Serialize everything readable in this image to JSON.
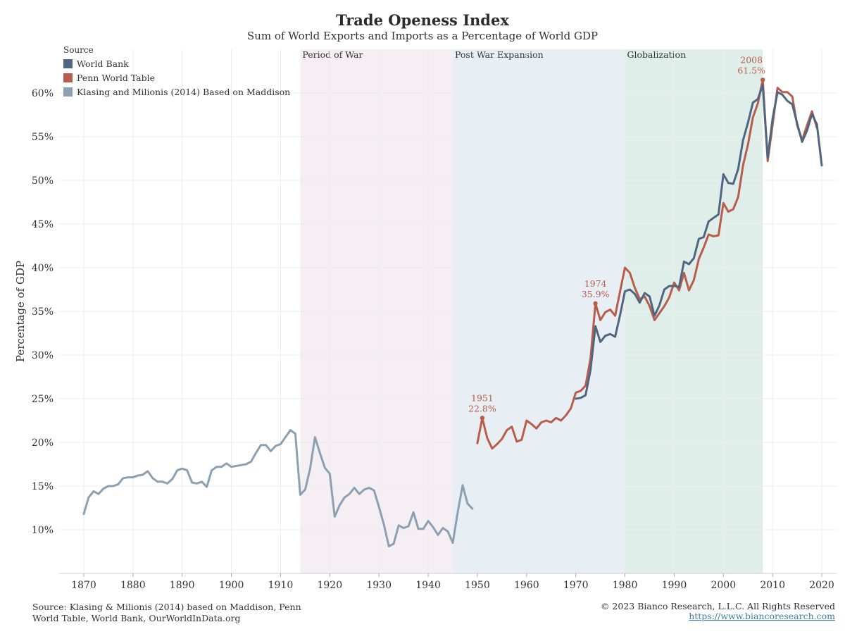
{
  "title": "Trade Openess Index",
  "subtitle": "Sum of World Exports and Imports as a Percentage of World GDP",
  "legend": {
    "title": "Source",
    "items": [
      {
        "label": "World Bank",
        "color": "#4e6680"
      },
      {
        "label": "Penn World Table",
        "color": "#b85c4b"
      },
      {
        "label": "Klasing and Milionis (2014) Based on Maddison",
        "color": "#8ba0b3"
      }
    ]
  },
  "footer": {
    "source": "Source: Klasing & Milionis (2014) based on Maddison, Penn World Table, World Bank, OurWorldInData.org",
    "copyright": "© 2023 Bianco Research, L.L.C. All Rights Reserved",
    "url": "https://www.biancoresearch.com"
  },
  "chart_data": {
    "type": "line",
    "title": "Trade Openess Index",
    "subtitle": "Sum of World Exports and Imports as a Percentage of World GDP",
    "xlabel": "",
    "ylabel": "Percentage of GDP",
    "xlim": [
      1865,
      2023
    ],
    "ylim": [
      5,
      65
    ],
    "xticks": [
      1870,
      1880,
      1890,
      1900,
      1910,
      1920,
      1930,
      1940,
      1950,
      1960,
      1970,
      1980,
      1990,
      2000,
      2010,
      2020
    ],
    "yticks": [
      10,
      15,
      20,
      25,
      30,
      35,
      40,
      45,
      50,
      55,
      60
    ],
    "ytick_suffix": "%",
    "grid": true,
    "legend_position": "top-left",
    "periods": [
      {
        "label": "Period of War",
        "start": 1914,
        "end": 1945,
        "color": "#f5eef3"
      },
      {
        "label": "Post War Expansion",
        "start": 1945,
        "end": 1980,
        "color": "#e8eff4"
      },
      {
        "label": "Globalization",
        "start": 1980,
        "end": 2008,
        "color": "#e0eeea"
      }
    ],
    "series": [
      {
        "name": "Klasing and Milionis (2014) Based on Maddison",
        "color": "#8ba0b3",
        "points": [
          [
            1870,
            11.8
          ],
          [
            1871,
            13.7
          ],
          [
            1872,
            14.4
          ],
          [
            1873,
            14.1
          ],
          [
            1874,
            14.7
          ],
          [
            1875,
            15.0
          ],
          [
            1876,
            15.0
          ],
          [
            1877,
            15.2
          ],
          [
            1878,
            15.9
          ],
          [
            1879,
            16.0
          ],
          [
            1880,
            16.0
          ],
          [
            1881,
            16.2
          ],
          [
            1882,
            16.3
          ],
          [
            1883,
            16.7
          ],
          [
            1884,
            15.9
          ],
          [
            1885,
            15.5
          ],
          [
            1886,
            15.5
          ],
          [
            1887,
            15.3
          ],
          [
            1888,
            15.8
          ],
          [
            1889,
            16.8
          ],
          [
            1890,
            17.0
          ],
          [
            1891,
            16.8
          ],
          [
            1892,
            15.4
          ],
          [
            1893,
            15.3
          ],
          [
            1894,
            15.5
          ],
          [
            1895,
            14.9
          ],
          [
            1896,
            16.8
          ],
          [
            1897,
            17.2
          ],
          [
            1898,
            17.2
          ],
          [
            1899,
            17.6
          ],
          [
            1900,
            17.2
          ],
          [
            1901,
            17.3
          ],
          [
            1902,
            17.4
          ],
          [
            1903,
            17.5
          ],
          [
            1904,
            17.8
          ],
          [
            1905,
            18.8
          ],
          [
            1906,
            19.7
          ],
          [
            1907,
            19.7
          ],
          [
            1908,
            19.0
          ],
          [
            1909,
            19.6
          ],
          [
            1910,
            19.8
          ],
          [
            1911,
            20.6
          ],
          [
            1912,
            21.4
          ],
          [
            1913,
            21.0
          ],
          [
            1914,
            14.0
          ],
          [
            1915,
            14.6
          ],
          [
            1916,
            17.0
          ],
          [
            1917,
            20.6
          ],
          [
            1918,
            18.8
          ],
          [
            1919,
            17.1
          ],
          [
            1920,
            16.4
          ],
          [
            1921,
            11.5
          ],
          [
            1922,
            12.8
          ],
          [
            1923,
            13.7
          ],
          [
            1924,
            14.1
          ],
          [
            1925,
            14.8
          ],
          [
            1926,
            14.1
          ],
          [
            1927,
            14.6
          ],
          [
            1928,
            14.8
          ],
          [
            1929,
            14.5
          ],
          [
            1930,
            12.6
          ],
          [
            1931,
            10.6
          ],
          [
            1932,
            8.1
          ],
          [
            1933,
            8.4
          ],
          [
            1934,
            10.5
          ],
          [
            1935,
            10.2
          ],
          [
            1936,
            10.4
          ],
          [
            1937,
            12.0
          ],
          [
            1938,
            10.1
          ],
          [
            1939,
            10.1
          ],
          [
            1940,
            11.0
          ],
          [
            1941,
            10.3
          ],
          [
            1942,
            9.4
          ],
          [
            1943,
            10.2
          ],
          [
            1944,
            9.8
          ],
          [
            1945,
            8.5
          ],
          [
            1946,
            12.0
          ],
          [
            1947,
            15.1
          ],
          [
            1948,
            13.0
          ],
          [
            1949,
            12.4
          ]
        ]
      },
      {
        "name": "Penn World Table",
        "color": "#b85c4b",
        "points": [
          [
            1950,
            19.9
          ],
          [
            1951,
            22.8
          ],
          [
            1952,
            20.5
          ],
          [
            1953,
            19.3
          ],
          [
            1954,
            19.8
          ],
          [
            1955,
            20.4
          ],
          [
            1956,
            21.4
          ],
          [
            1957,
            21.8
          ],
          [
            1958,
            20.1
          ],
          [
            1959,
            20.3
          ],
          [
            1960,
            22.5
          ],
          [
            1961,
            22.1
          ],
          [
            1962,
            21.6
          ],
          [
            1963,
            22.3
          ],
          [
            1964,
            22.5
          ],
          [
            1965,
            22.3
          ],
          [
            1966,
            22.8
          ],
          [
            1967,
            22.5
          ],
          [
            1968,
            23.1
          ],
          [
            1969,
            23.9
          ],
          [
            1970,
            25.7
          ],
          [
            1971,
            25.9
          ],
          [
            1972,
            26.5
          ],
          [
            1973,
            29.6
          ],
          [
            1974,
            35.9
          ],
          [
            1975,
            34.0
          ],
          [
            1976,
            34.9
          ],
          [
            1977,
            35.2
          ],
          [
            1978,
            34.5
          ],
          [
            1979,
            37.3
          ],
          [
            1980,
            40.0
          ],
          [
            1981,
            39.4
          ],
          [
            1982,
            37.7
          ],
          [
            1983,
            36.4
          ],
          [
            1984,
            36.7
          ],
          [
            1985,
            35.6
          ],
          [
            1986,
            34.0
          ],
          [
            1987,
            34.8
          ],
          [
            1988,
            35.6
          ],
          [
            1989,
            36.6
          ],
          [
            1990,
            38.3
          ],
          [
            1991,
            37.4
          ],
          [
            1992,
            39.4
          ],
          [
            1993,
            37.4
          ],
          [
            1994,
            38.6
          ],
          [
            1995,
            41.0
          ],
          [
            1996,
            42.3
          ],
          [
            1997,
            43.8
          ],
          [
            1998,
            43.6
          ],
          [
            1999,
            43.7
          ],
          [
            2000,
            47.4
          ],
          [
            2001,
            46.4
          ],
          [
            2002,
            46.7
          ],
          [
            2003,
            48.1
          ],
          [
            2004,
            51.7
          ],
          [
            2005,
            54.1
          ],
          [
            2006,
            57.2
          ],
          [
            2007,
            58.8
          ],
          [
            2008,
            61.5
          ],
          [
            2009,
            52.2
          ],
          [
            2010,
            56.4
          ],
          [
            2011,
            60.6
          ],
          [
            2012,
            60.1
          ],
          [
            2013,
            60.1
          ],
          [
            2014,
            59.6
          ],
          [
            2015,
            56.3
          ],
          [
            2016,
            54.6
          ],
          [
            2017,
            56.3
          ],
          [
            2018,
            57.9
          ],
          [
            2019,
            56.0
          ]
        ]
      },
      {
        "name": "World Bank",
        "color": "#4e6680",
        "points": [
          [
            1970,
            25.0
          ],
          [
            1971,
            25.1
          ],
          [
            1972,
            25.4
          ],
          [
            1973,
            28.3
          ],
          [
            1974,
            33.3
          ],
          [
            1975,
            31.5
          ],
          [
            1976,
            32.2
          ],
          [
            1977,
            32.4
          ],
          [
            1978,
            32.1
          ],
          [
            1979,
            34.6
          ],
          [
            1980,
            37.3
          ],
          [
            1981,
            37.5
          ],
          [
            1982,
            37.0
          ],
          [
            1983,
            36.0
          ],
          [
            1984,
            37.1
          ],
          [
            1985,
            36.7
          ],
          [
            1986,
            34.5
          ],
          [
            1987,
            35.7
          ],
          [
            1988,
            37.5
          ],
          [
            1989,
            37.9
          ],
          [
            1990,
            37.9
          ],
          [
            1991,
            37.8
          ],
          [
            1992,
            40.7
          ],
          [
            1993,
            40.4
          ],
          [
            1994,
            41.1
          ],
          [
            1995,
            43.3
          ],
          [
            1996,
            43.5
          ],
          [
            1997,
            45.3
          ],
          [
            1998,
            45.7
          ],
          [
            1999,
            46.1
          ],
          [
            2000,
            50.7
          ],
          [
            2001,
            49.7
          ],
          [
            2002,
            49.6
          ],
          [
            2003,
            51.3
          ],
          [
            2004,
            54.6
          ],
          [
            2005,
            56.6
          ],
          [
            2006,
            58.9
          ],
          [
            2007,
            59.3
          ],
          [
            2008,
            60.9
          ],
          [
            2009,
            52.6
          ],
          [
            2010,
            57.1
          ],
          [
            2011,
            60.1
          ],
          [
            2012,
            59.8
          ],
          [
            2013,
            59.1
          ],
          [
            2014,
            58.7
          ],
          [
            2015,
            56.5
          ],
          [
            2016,
            54.4
          ],
          [
            2017,
            55.7
          ],
          [
            2018,
            57.6
          ],
          [
            2019,
            56.4
          ],
          [
            2020,
            51.7
          ]
        ]
      }
    ],
    "annotations": [
      {
        "year": "1951",
        "value": "22.8%",
        "x": 1951,
        "y": 22.8
      },
      {
        "year": "1974",
        "value": "35.9%",
        "x": 1974,
        "y": 35.9
      },
      {
        "year": "2008",
        "value": "61.5%",
        "x": 2008,
        "y": 61.5
      }
    ]
  }
}
